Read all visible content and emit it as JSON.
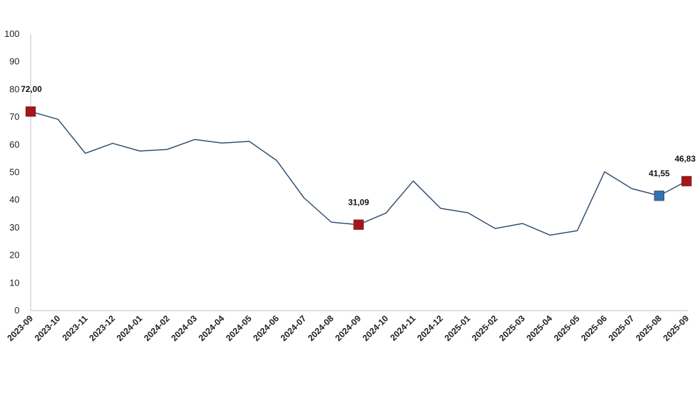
{
  "chart_data": {
    "type": "line",
    "title": "",
    "xlabel": "",
    "ylabel": "",
    "ylim": [
      0,
      100
    ],
    "yticks": [
      0,
      10,
      20,
      30,
      40,
      50,
      60,
      70,
      80,
      90,
      100
    ],
    "grid": false,
    "legend": "none",
    "x": [
      "2023-09",
      "2023-10",
      "2023-11",
      "2023-12",
      "2024-01",
      "2024-02",
      "2024-03",
      "2024-04",
      "2024-05",
      "2024-06",
      "2024-07",
      "2024-08",
      "2024-09",
      "2024-10",
      "2024-11",
      "2024-12",
      "2025-01",
      "2025-02",
      "2025-03",
      "2025-04",
      "2025-05",
      "2025-06",
      "2025-07",
      "2025-08",
      "2025-09"
    ],
    "series": [
      {
        "values": [
          72.0,
          69.2,
          56.9,
          60.5,
          57.7,
          58.3,
          61.9,
          60.6,
          61.2,
          54.3,
          40.8,
          32.0,
          31.09,
          35.3,
          46.9,
          37.0,
          35.4,
          29.7,
          31.5,
          27.3,
          28.9,
          50.2,
          44.1,
          41.55,
          46.83
        ],
        "color": "#2f4e6e"
      }
    ],
    "highlights": [
      {
        "x": "2023-09",
        "value": 72.0,
        "label": "72,00",
        "color": "#a4161a"
      },
      {
        "x": "2024-09",
        "value": 31.09,
        "label": "31,09",
        "color": "#a4161a"
      },
      {
        "x": "2025-08",
        "value": 41.55,
        "label": "41,55",
        "color": "#2e75b6"
      },
      {
        "x": "2025-09",
        "value": 46.83,
        "label": "46,83",
        "color": "#a4161a"
      }
    ],
    "axis_color": "#bfbfbf"
  }
}
